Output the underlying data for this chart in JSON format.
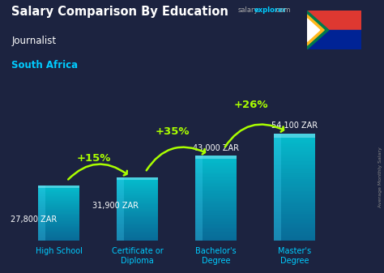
{
  "title": "Salary Comparison By Education",
  "subtitle1": "Journalist",
  "subtitle2": "South Africa",
  "categories": [
    "High School",
    "Certificate or\nDiploma",
    "Bachelor's\nDegree",
    "Master's\nDegree"
  ],
  "values": [
    27800,
    31900,
    43000,
    54100
  ],
  "value_labels": [
    "27,800 ZAR",
    "31,900 ZAR",
    "43,000 ZAR",
    "54,100 ZAR"
  ],
  "pct_labels": [
    "+15%",
    "+35%",
    "+26%"
  ],
  "bar_color_main": "#00cfff",
  "bar_color_light": "#40e0ff",
  "bar_alpha": 0.82,
  "bg_color": "#1c2340",
  "title_color": "#ffffff",
  "subtitle1_color": "#ffffff",
  "subtitle2_color": "#00ccff",
  "value_label_color": "#ffffff",
  "pct_color": "#aaff00",
  "xlabel_color": "#00ccff",
  "watermark_salary": "salary",
  "watermark_explorer": "explorer",
  "watermark_com": ".com",
  "watermark_color1": "#aaaaaa",
  "watermark_color2": "#00ccff",
  "side_label": "Average Monthly Salary",
  "ylim": [
    0,
    72000
  ],
  "bar_width": 0.52
}
